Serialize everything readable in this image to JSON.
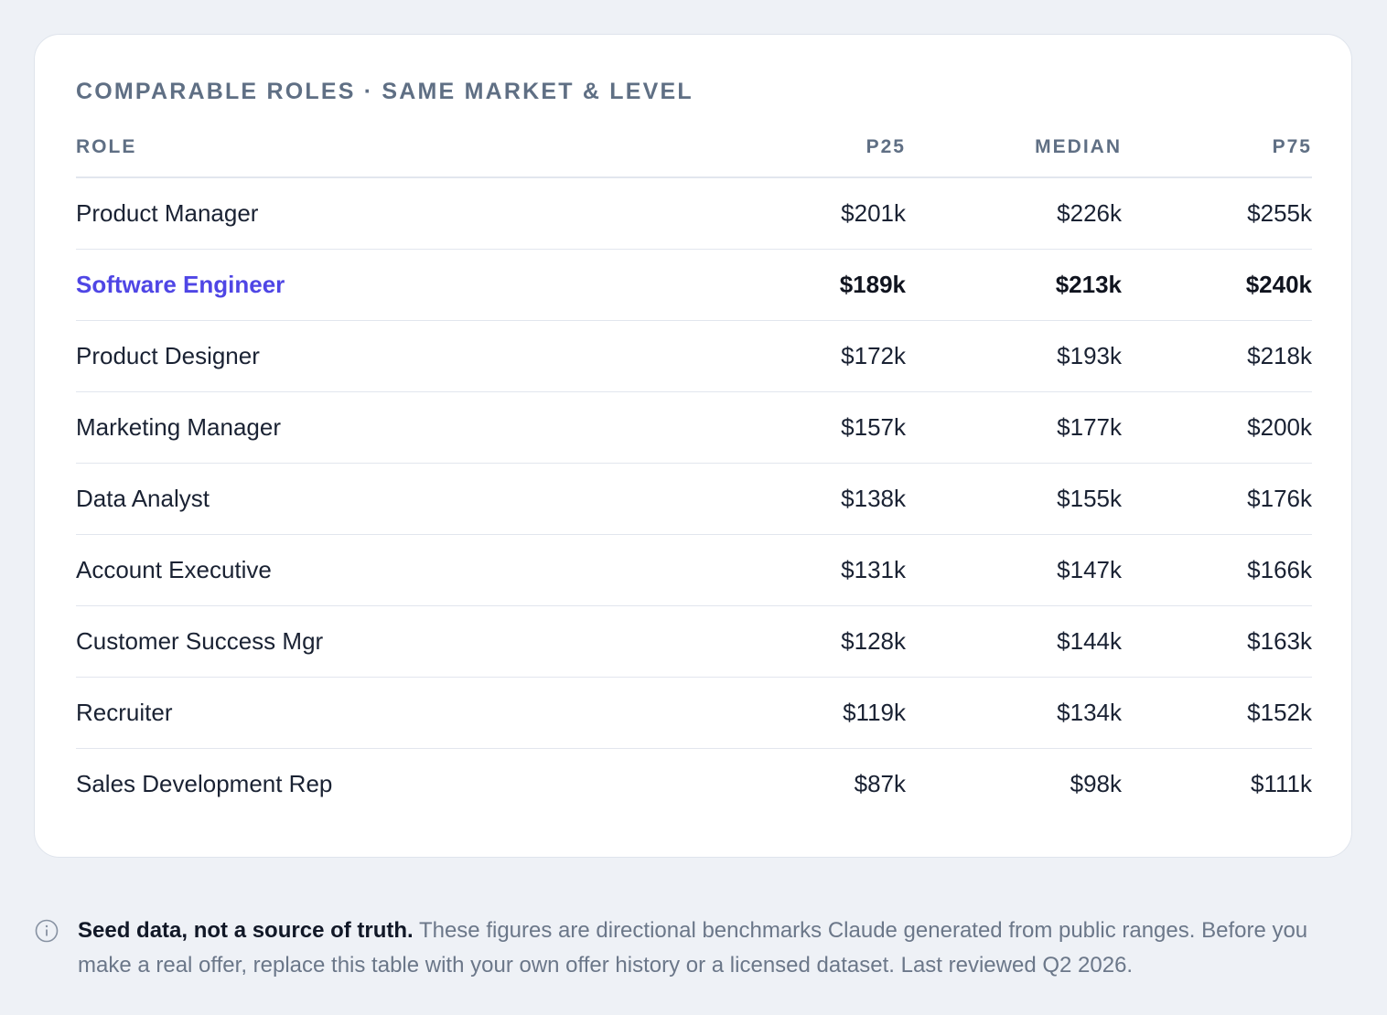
{
  "card": {
    "title": "COMPARABLE ROLES · SAME MARKET & LEVEL",
    "table": {
      "header": [
        "ROLE",
        "P25",
        "MEDIAN",
        "P75"
      ],
      "highlighted_row": 1,
      "rows": [
        [
          "Product Manager",
          "$201k",
          "$226k",
          "$255k"
        ],
        [
          "Software Engineer",
          "$189k",
          "$213k",
          "$240k"
        ],
        [
          "Product Designer",
          "$172k",
          "$193k",
          "$218k"
        ],
        [
          "Marketing Manager",
          "$157k",
          "$177k",
          "$200k"
        ],
        [
          "Data Analyst",
          "$138k",
          "$155k",
          "$176k"
        ],
        [
          "Account Executive",
          "$131k",
          "$147k",
          "$166k"
        ],
        [
          "Customer Success Mgr",
          "$128k",
          "$144k",
          "$163k"
        ],
        [
          "Recruiter",
          "$119k",
          "$134k",
          "$152k"
        ],
        [
          "Sales Development Rep",
          "$87k",
          "$98k",
          "$111k"
        ]
      ]
    }
  },
  "footer": {
    "bold": "Seed data, not a source of truth.",
    "text": "These figures are directional benchmarks Claude generated from public ranges. Before you make a real offer, replace this table with your own offer history or a licensed dataset. Last reviewed Q2 2026."
  }
}
